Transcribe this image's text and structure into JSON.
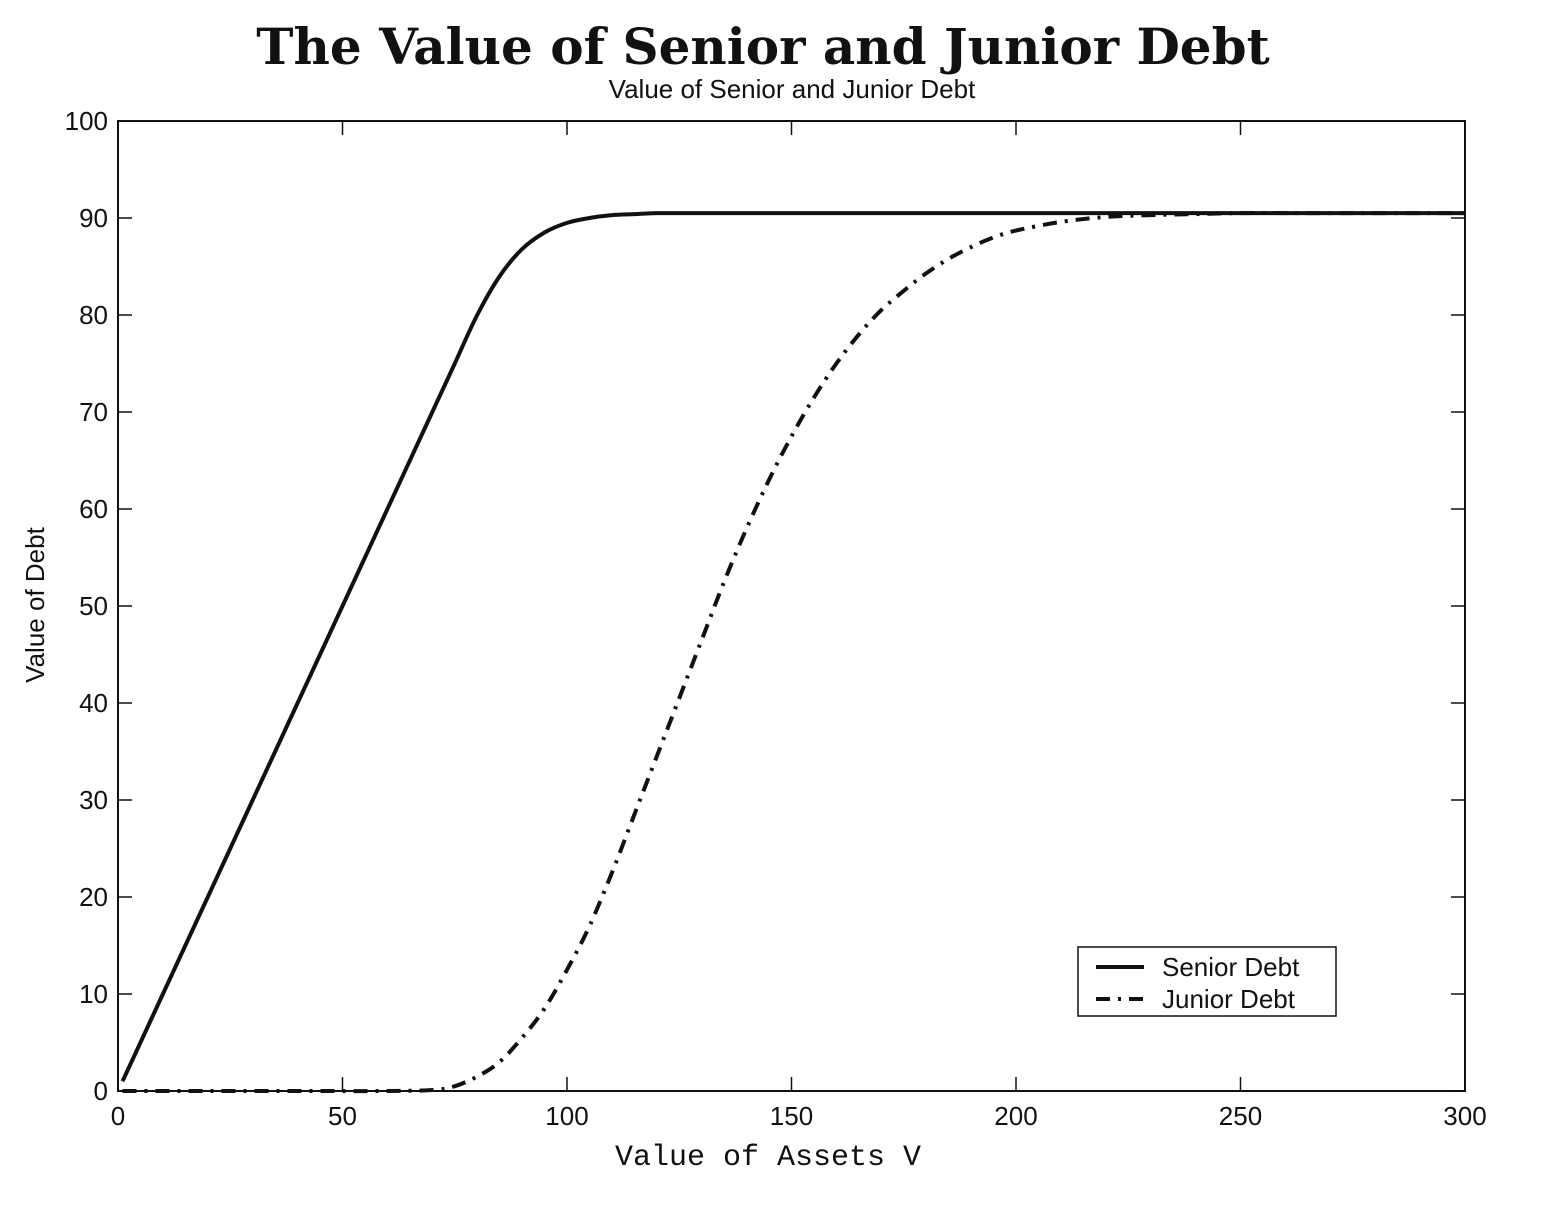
{
  "chart_data": {
    "type": "line",
    "title": "The Value of Senior and Junior Debt",
    "subtitle": "Value of Senior and Junior Debt",
    "xlabel": "Value of Assets V",
    "ylabel": "Value of Debt",
    "xlim": [
      0,
      300
    ],
    "ylim": [
      0,
      100
    ],
    "xticks": [
      0,
      50,
      100,
      150,
      200,
      250,
      300
    ],
    "yticks": [
      0,
      10,
      20,
      30,
      40,
      50,
      60,
      70,
      80,
      90,
      100
    ],
    "grid": false,
    "legend_position": "bottom-right",
    "series": [
      {
        "name": "Senior Debt",
        "line_style": "solid",
        "color": "#111111",
        "x": [
          1,
          10,
          20,
          30,
          40,
          50,
          60,
          70,
          75,
          80,
          85,
          90,
          95,
          100,
          105,
          110,
          115,
          120,
          130,
          150,
          200,
          250,
          300
        ],
        "y": [
          1,
          10,
          20,
          30,
          40,
          50,
          60,
          70,
          75,
          80,
          84,
          86.8,
          88.5,
          89.5,
          90.0,
          90.3,
          90.4,
          90.5,
          90.5,
          90.5,
          90.5,
          90.5,
          90.5
        ]
      },
      {
        "name": "Junior Debt",
        "line_style": "dash-dot",
        "color": "#111111",
        "x": [
          1,
          20,
          40,
          60,
          70,
          75,
          80,
          85,
          90,
          95,
          100,
          105,
          110,
          115,
          120,
          125,
          130,
          135,
          140,
          145,
          150,
          155,
          160,
          165,
          170,
          175,
          180,
          185,
          190,
          195,
          200,
          210,
          220,
          230,
          240,
          250,
          270,
          300
        ],
        "y": [
          0,
          0,
          0,
          0,
          0.1,
          0.5,
          1.5,
          3.0,
          5.5,
          8.5,
          12.5,
          17.0,
          22.5,
          28.5,
          34.5,
          40.5,
          46.5,
          52.5,
          58.0,
          63.0,
          67.5,
          71.5,
          75.0,
          78.0,
          80.5,
          82.5,
          84.3,
          85.8,
          87.0,
          88.0,
          88.7,
          89.6,
          90.1,
          90.3,
          90.4,
          90.5,
          90.5,
          90.5
        ]
      }
    ]
  }
}
